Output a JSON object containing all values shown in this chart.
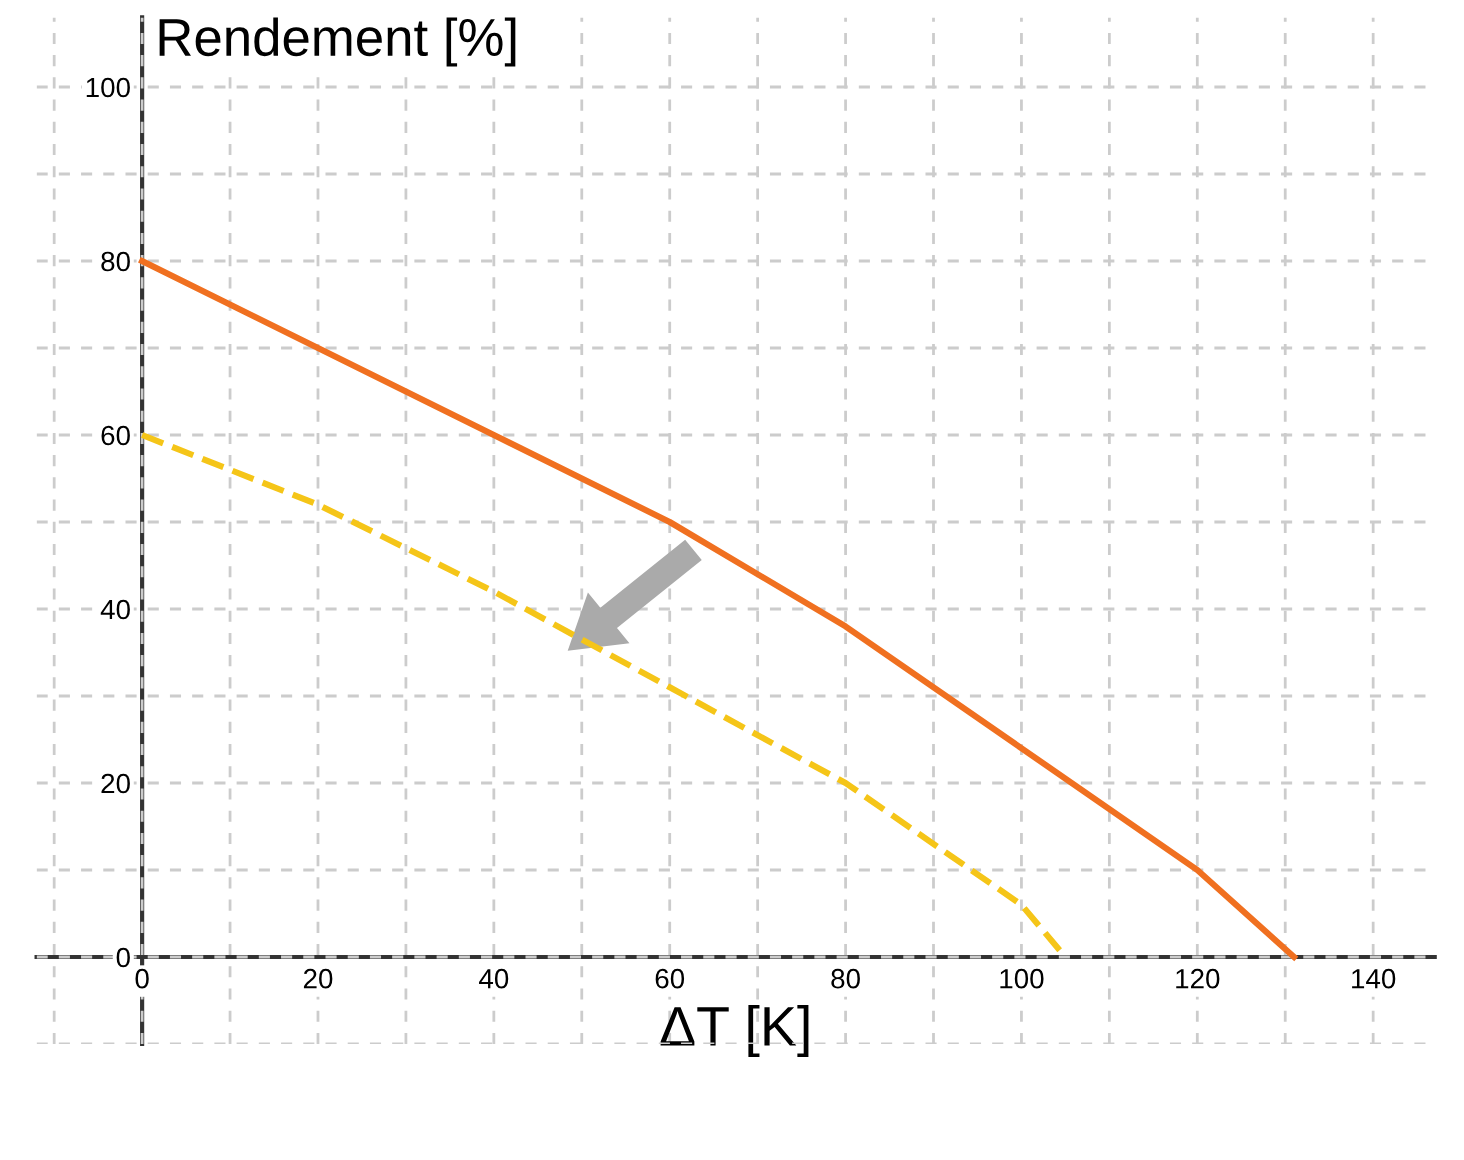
{
  "chart_data": {
    "type": "line",
    "xlabel": "ΔT [K]",
    "ylabel": "Rendement [%]",
    "series": [
      {
        "color": "#f07020",
        "line_style": "solid",
        "x": [
          0,
          20,
          40,
          60,
          80,
          100,
          120,
          131
        ],
        "values": [
          80,
          70,
          60,
          50,
          38,
          24,
          10,
          0
        ]
      },
      {
        "color": "#f5c518",
        "line_style": "dashed",
        "x": [
          0,
          20,
          40,
          60,
          80,
          100,
          105
        ],
        "values": [
          60,
          52,
          42,
          31,
          20,
          6,
          0
        ]
      }
    ],
    "xlim": [
      -12,
      147
    ],
    "ylim": [
      -10,
      108
    ],
    "xticks": [
      {
        "value": -10,
        "label": null
      },
      0,
      {
        "value": 10,
        "label": null
      },
      20,
      {
        "value": 30,
        "label": null
      },
      40,
      {
        "value": 50,
        "label": null
      },
      60,
      {
        "value": 70,
        "label": null
      },
      80,
      {
        "value": 90,
        "label": null
      },
      100,
      {
        "value": 110,
        "label": null
      },
      120,
      {
        "value": 130,
        "label": null
      },
      140
    ],
    "yticks": [
      {
        "value": -10,
        "label": null
      },
      0,
      {
        "value": 10,
        "label": null
      },
      20,
      {
        "value": 30,
        "label": null
      },
      40,
      {
        "value": 50,
        "label": null
      },
      60,
      {
        "value": 70,
        "label": null
      },
      80,
      {
        "value": 90,
        "label": null
      },
      100
    ],
    "grid": true,
    "marker": "none"
  }
}
